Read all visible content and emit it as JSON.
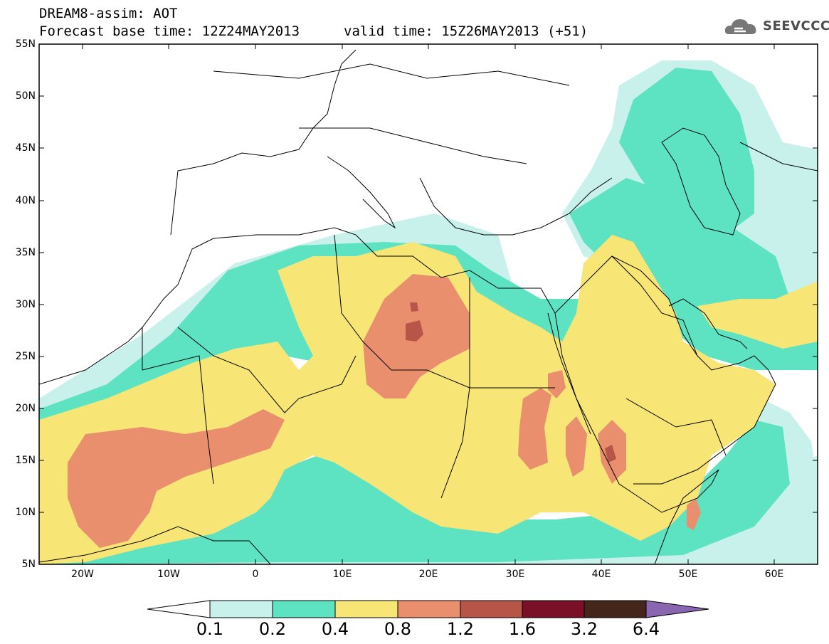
{
  "header": {
    "line1": "DREAM8-assim: AOT",
    "line2": "Forecast base time: 12Z24MAY2013",
    "valid": "valid time: 15Z26MAY2013 (+51)"
  },
  "logo": {
    "text": "SEEVCCC",
    "icon": "cloud-icon"
  },
  "map": {
    "lat_labels": [
      "55N",
      "50N",
      "45N",
      "40N",
      "35N",
      "30N",
      "25N",
      "20N",
      "15N",
      "10N",
      "5N"
    ],
    "lon_labels": [
      "20W",
      "10W",
      "0",
      "10E",
      "20E",
      "30E",
      "40E",
      "50E",
      "60E"
    ],
    "region": "North Africa, Europe, Middle East",
    "variable": "AOT"
  },
  "colors": {
    "c01": "#c8f1ec",
    "c02": "#5ee3c2",
    "c04": "#f7e576",
    "c08": "#e98f6d",
    "c12": "#b75548",
    "c16": "#7a0f28",
    "c32": "#44261a",
    "c64": "#8a66b0",
    "ocean": "#ffffff"
  },
  "colorbar": {
    "labels": [
      "0.1",
      "0.2",
      "0.4",
      "0.8",
      "1.2",
      "1.6",
      "3.2",
      "6.4"
    ]
  }
}
